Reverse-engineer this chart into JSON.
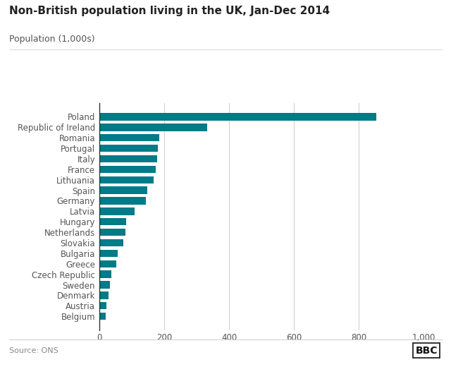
{
  "title": "Non-British population living in the UK, Jan-Dec 2014",
  "subtitle": "Population (1,000s)",
  "source": "Source: ONS",
  "bar_color": "#007b88",
  "background_color": "#ffffff",
  "text_color": "#555555",
  "title_color": "#222222",
  "xlim": [
    0,
    1000
  ],
  "xticks": [
    0,
    200,
    400,
    600,
    800,
    1000
  ],
  "xtick_labels": [
    "0",
    "200",
    "400",
    "600",
    "800",
    "1,000"
  ],
  "countries": [
    "Poland",
    "Republic of Ireland",
    "Romania",
    "Portugal",
    "Italy",
    "France",
    "Lithuania",
    "Spain",
    "Germany",
    "Latvia",
    "Hungary",
    "Netherlands",
    "Slovakia",
    "Bulgaria",
    "Greece",
    "Czech Republic",
    "Sweden",
    "Denmark",
    "Austria",
    "Belgium"
  ],
  "values": [
    853,
    332,
    185,
    181,
    178,
    173,
    168,
    148,
    143,
    110,
    82,
    80,
    75,
    57,
    52,
    38,
    33,
    28,
    22,
    20
  ]
}
